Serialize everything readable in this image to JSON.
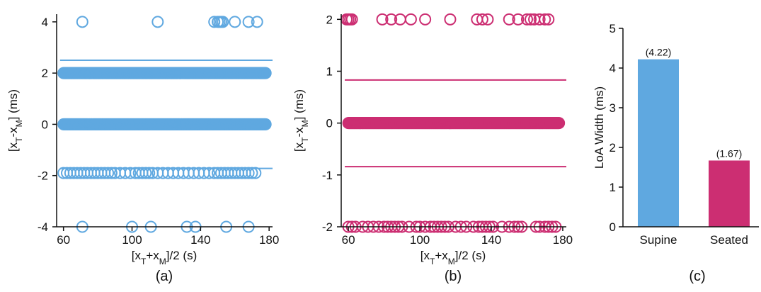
{
  "chart_data": [
    {
      "type": "scatter",
      "panel_label": "(a)",
      "xlabel": {
        "base": "[x",
        "sub1": "T",
        "mid": "+x",
        "sub2": "M",
        "tail": "]/2 (s)"
      },
      "ylabel": {
        "base": "[x",
        "sub1": "T",
        "mid": "-x",
        "sub2": "M",
        "tail": "] (ms)"
      },
      "xlim": [
        56,
        182
      ],
      "ylim": [
        -4,
        4.3
      ],
      "xticks": [
        60,
        100,
        140,
        180
      ],
      "yticks": [
        -4,
        -2,
        0,
        2,
        4
      ],
      "xtick_labels": [
        "60",
        "100",
        "140",
        "180"
      ],
      "ytick_labels": [
        "-4",
        "-2",
        "0",
        "2",
        "4"
      ],
      "marker_color": "#5fa8e0",
      "limit_lines": [
        2.5,
        -1.72
      ],
      "dense_rows": [
        {
          "y": 2,
          "x_range": [
            60,
            178
          ],
          "step": 0.35
        },
        {
          "y": 0,
          "x_range": [
            60,
            178
          ],
          "step": 0.35
        }
      ],
      "points": [
        {
          "y": 4,
          "x": [
            71,
            115,
            148,
            150,
            151,
            152,
            153,
            160,
            168,
            173
          ]
        },
        {
          "y": -1.9,
          "x": [
            60,
            62,
            64,
            66,
            68,
            70,
            72,
            74,
            76,
            78,
            80,
            82,
            84,
            86,
            88,
            90,
            93,
            96,
            99,
            102,
            104,
            106,
            108,
            110,
            112,
            115,
            118,
            121,
            124,
            127,
            130,
            133,
            136,
            139,
            142,
            145,
            148,
            150,
            152,
            154,
            156,
            158,
            160,
            162,
            164,
            166,
            168,
            170,
            172
          ]
        },
        {
          "y": -4,
          "x": [
            71,
            100,
            111,
            132,
            137,
            155,
            168
          ]
        }
      ]
    },
    {
      "type": "scatter",
      "panel_label": "(b)",
      "xlabel": {
        "base": "[x",
        "sub1": "T",
        "mid": "+x",
        "sub2": "M",
        "tail": "]/2 (s)"
      },
      "ylabel": {
        "base": "[x",
        "sub1": "T",
        "mid": "-x",
        "sub2": "M",
        "tail": "] (ms)"
      },
      "xlim": [
        56,
        182
      ],
      "ylim": [
        -2,
        2.1
      ],
      "xticks": [
        60,
        100,
        140,
        180
      ],
      "yticks": [
        -2,
        -1,
        0,
        1,
        2
      ],
      "xtick_labels": [
        "60",
        "100",
        "140",
        "180"
      ],
      "ytick_labels": [
        "-2",
        "-1",
        "0",
        "1",
        "2"
      ],
      "marker_color": "#cc2e72",
      "limit_lines": [
        0.83,
        -0.84
      ],
      "dense_rows": [
        {
          "y": 0,
          "x_range": [
            60,
            178
          ],
          "step": 0.3
        }
      ],
      "points": [
        {
          "y": 2,
          "x": [
            59,
            60,
            61,
            62,
            79,
            84,
            89,
            95,
            103,
            117,
            132,
            135,
            138,
            150,
            155,
            160,
            162,
            164,
            167,
            170,
            172
          ]
        },
        {
          "y": -2,
          "x": [
            60,
            62,
            64,
            68,
            71,
            74,
            77,
            80,
            82,
            84,
            86,
            88,
            90,
            94,
            98,
            100,
            103,
            106,
            108,
            110,
            112,
            114,
            116,
            120,
            123,
            126,
            130,
            133,
            135,
            137,
            139,
            141,
            146,
            150,
            153,
            155,
            157,
            165,
            167,
            170,
            172,
            174,
            176
          ]
        }
      ]
    },
    {
      "type": "bar",
      "panel_label": "(c)",
      "ylabel": "LoA Width (ms)",
      "categories": [
        "Supine",
        "Seated"
      ],
      "values": [
        4.22,
        1.67
      ],
      "value_labels": [
        "(4.22)",
        "(1.67)"
      ],
      "colors": [
        "#5fa8e0",
        "#cc2e72"
      ],
      "ylim": [
        0,
        5
      ],
      "yticks": [
        0,
        1,
        2,
        3,
        4,
        5
      ],
      "ytick_labels": [
        "0",
        "1",
        "2",
        "3",
        "4",
        "5"
      ]
    }
  ]
}
